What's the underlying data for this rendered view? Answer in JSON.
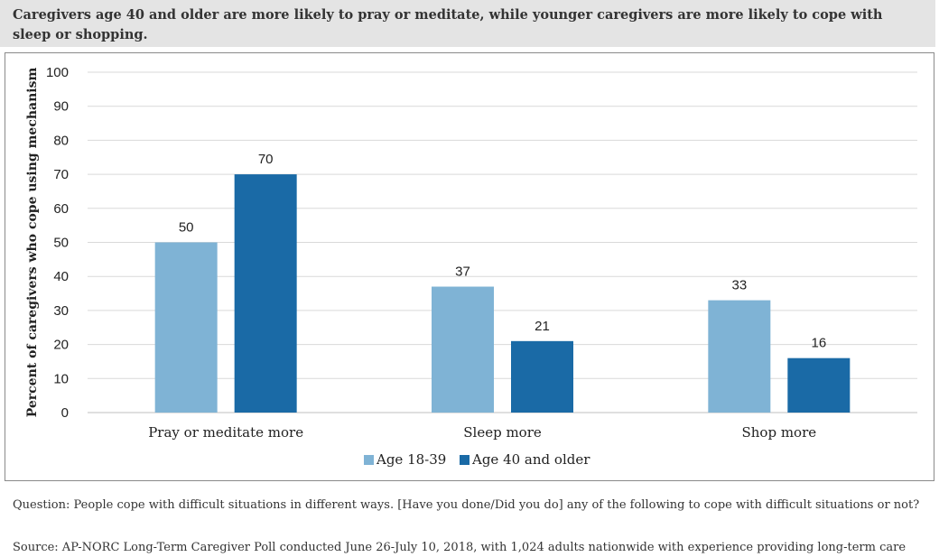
{
  "title": "Caregivers age 40 and older are more likely to pray or meditate, while younger caregivers are more likely to cope with sleep or shopping.",
  "question": "Question: People cope with difficult situations in different ways. [Have you done/Did you do] any of the following to cope with difficult situations or not?",
  "source": "Source: AP-NORC Long-Term Caregiver Poll conducted June 26-July 10, 2018, with 1,024 adults nationwide with experience providing long-term care",
  "chart_data": {
    "type": "bar",
    "title": "Caregivers age 40 and older are more likely to pray or meditate, while younger caregivers are more likely to cope with sleep or shopping.",
    "categories": [
      "Pray or meditate more",
      "Sleep more",
      "Shop more"
    ],
    "series": [
      {
        "name": "Age 18-39",
        "values": [
          50,
          37,
          33
        ],
        "color": "#7fb3d5"
      },
      {
        "name": "Age 40 and older",
        "values": [
          70,
          21,
          16
        ],
        "color": "#1a6aa6"
      }
    ],
    "ylabel": "Percent of caregivers who cope using mechanism",
    "xlabel": "",
    "ylim": [
      0,
      100
    ],
    "yticks": [
      0,
      10,
      20,
      30,
      40,
      50,
      60,
      70,
      80,
      90,
      100
    ],
    "grid": true,
    "legend": "bottom-center",
    "gridline_color": "#d9d9d9"
  }
}
